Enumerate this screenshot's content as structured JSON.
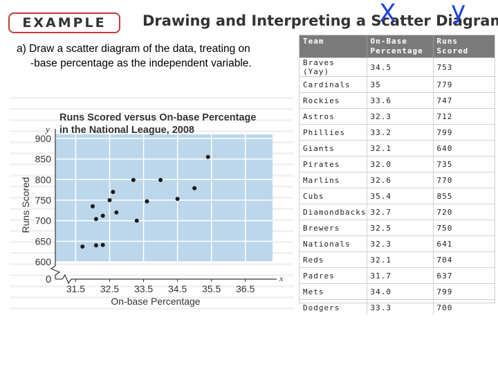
{
  "header": {
    "example_label": "EXAMPLE",
    "title": "Drawing and Interpreting a Scatter Diagram",
    "x_annotation": "X",
    "y_annotation": "y"
  },
  "prompt": {
    "line1": "a)  Draw a scatter diagram of the data, treating on",
    "line2": "-base percentage as the independent variable."
  },
  "table": {
    "headers": [
      "Team",
      "On-Base Percentage",
      "Runs Scored"
    ],
    "rows": [
      {
        "team": "Braves (Yay)",
        "obp": "34.5",
        "runs": "753"
      },
      {
        "team": "Cardinals",
        "obp": "35",
        "runs": "779"
      },
      {
        "team": "Rockies",
        "obp": "33.6",
        "runs": "747"
      },
      {
        "team": "Astros",
        "obp": "32.3",
        "runs": "712"
      },
      {
        "team": "Phillies",
        "obp": "33.2",
        "runs": "799"
      },
      {
        "team": "Giants",
        "obp": "32.1",
        "runs": "640"
      },
      {
        "team": "Pirates",
        "obp": "32.0",
        "runs": "735"
      },
      {
        "team": "Marlins",
        "obp": "32.6",
        "runs": "770"
      },
      {
        "team": "Cubs",
        "obp": "35.4",
        "runs": "855"
      },
      {
        "team": "Diamondbacks",
        "obp": "32.7",
        "runs": "720"
      },
      {
        "team": "Brewers",
        "obp": "32.5",
        "runs": "750"
      },
      {
        "team": "Nationals",
        "obp": "32.3",
        "runs": "641"
      },
      {
        "team": "Reds",
        "obp": "32.1",
        "runs": "704"
      },
      {
        "team": "Padres",
        "obp": "31.7",
        "runs": "637"
      },
      {
        "team": "Mets",
        "obp": "34.0",
        "runs": "799"
      },
      {
        "team": "Dodgers",
        "obp": "33.3",
        "runs": "700"
      }
    ]
  },
  "chart_data": {
    "type": "scatter",
    "title": "Runs Scored versus On-base Percentage in the National League, 2008",
    "title_lines": [
      "Runs Scored versus On-base Percentage",
      "in the National League, 2008"
    ],
    "xlabel": "On-base Percentage",
    "ylabel": "Runs Scored",
    "x_axis_letter": "x",
    "y_axis_letter": "y",
    "origin_label": "0",
    "xlim": [
      30.9,
      37.3
    ],
    "ylim": [
      600,
      910
    ],
    "x_ticks": [
      31.5,
      32.5,
      33.5,
      34.5,
      35.5,
      36.5
    ],
    "y_ticks": [
      600,
      650,
      700,
      750,
      800,
      850,
      900
    ],
    "axis_break": true,
    "grid": true,
    "background_color": "#bcd6ec",
    "grid_color": "#ffffff",
    "point_color": "#1a1a1a",
    "points": [
      {
        "x": 34.5,
        "y": 753
      },
      {
        "x": 35.0,
        "y": 779
      },
      {
        "x": 33.6,
        "y": 747
      },
      {
        "x": 32.3,
        "y": 712
      },
      {
        "x": 33.2,
        "y": 799
      },
      {
        "x": 32.1,
        "y": 640
      },
      {
        "x": 32.0,
        "y": 735
      },
      {
        "x": 32.6,
        "y": 770
      },
      {
        "x": 35.4,
        "y": 855
      },
      {
        "x": 32.7,
        "y": 720
      },
      {
        "x": 32.5,
        "y": 750
      },
      {
        "x": 32.3,
        "y": 641
      },
      {
        "x": 32.1,
        "y": 704
      },
      {
        "x": 31.7,
        "y": 637
      },
      {
        "x": 34.0,
        "y": 799
      },
      {
        "x": 33.3,
        "y": 700
      }
    ]
  }
}
